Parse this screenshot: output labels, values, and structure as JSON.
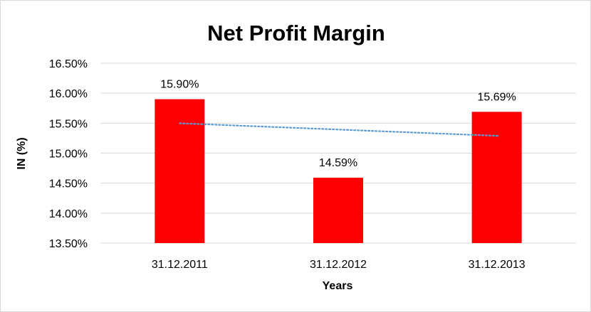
{
  "chart_data": {
    "type": "bar",
    "title": "Net Profit Margin",
    "xlabel": "Years",
    "ylabel": "IN (%)",
    "categories": [
      "31.12.2011",
      "31.12.2012",
      "31.12.2013"
    ],
    "values": [
      15.9,
      14.59,
      15.69
    ],
    "data_labels": [
      "15.90%",
      "14.59%",
      "15.69%"
    ],
    "ylim": [
      13.5,
      16.5
    ],
    "yticks": [
      13.5,
      14.0,
      14.5,
      15.0,
      15.5,
      16.0,
      16.5
    ],
    "ytick_labels": [
      "13.50%",
      "14.00%",
      "14.50%",
      "15.00%",
      "15.50%",
      "16.00%",
      "16.50%"
    ],
    "grid": true,
    "trendline": {
      "type": "linear",
      "style": "dotted",
      "color": "#5b9bd5"
    },
    "bar_color": "#ff0000",
    "legend": "none"
  }
}
